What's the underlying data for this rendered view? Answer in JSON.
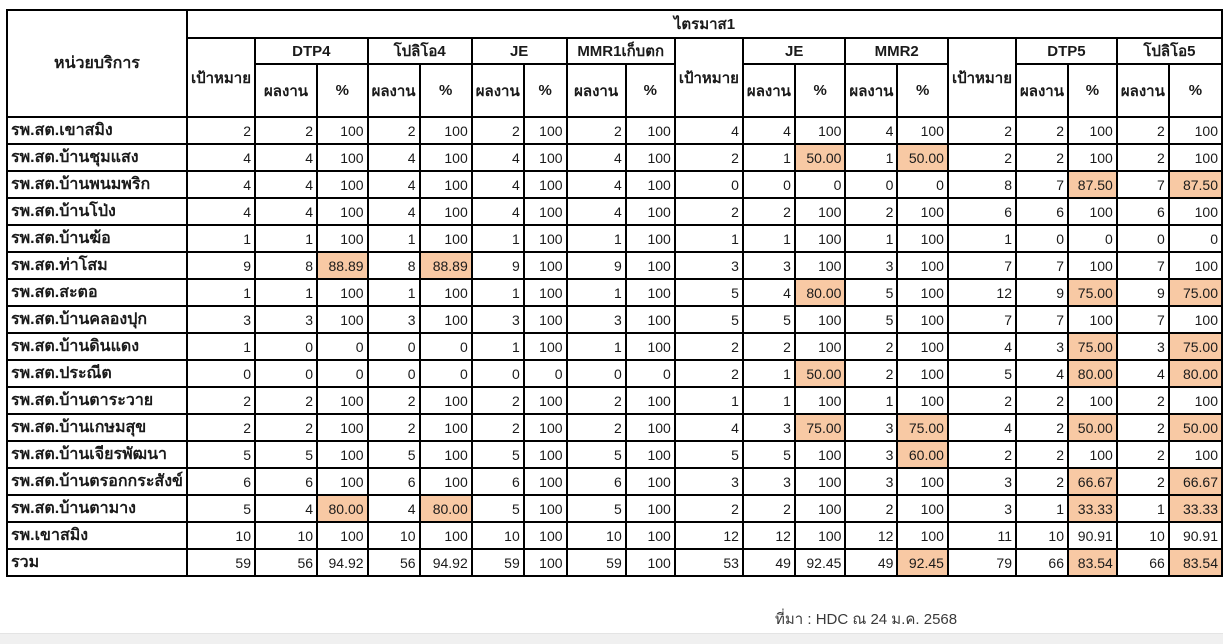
{
  "colors": {
    "highlight": "#F8C9A4",
    "border": "#000000",
    "bottom_bar": "#f0f0f0"
  },
  "table": {
    "quarter_header": "ไตรมาส1",
    "unit_col_header": "หน่วยบริการ",
    "target_label": "เป้าหมาย",
    "result_label": "ผลงาน",
    "percent_label": "%",
    "groups": [
      {
        "label": "DTP4"
      },
      {
        "label": "โปลิโอ4"
      },
      {
        "label": "JE"
      },
      {
        "label": "MMR1เก็บตก"
      },
      {
        "label": "JE"
      },
      {
        "label": "MMR2"
      },
      {
        "label": "DTP5"
      },
      {
        "label": "โปลิโอ5"
      }
    ],
    "rows": [
      {
        "unit": "รพ.สต.เขาสมิง",
        "values": [
          "2",
          "2",
          "100",
          "2",
          "100",
          "2",
          "100",
          "2",
          "100",
          "4",
          "4",
          "100",
          "4",
          "100",
          "2",
          "2",
          "100",
          "2",
          "100"
        ],
        "highlights": []
      },
      {
        "unit": "รพ.สต.บ้านชุมแสง",
        "values": [
          "4",
          "4",
          "100",
          "4",
          "100",
          "4",
          "100",
          "4",
          "100",
          "2",
          "1",
          "50.00",
          "1",
          "50.00",
          "2",
          "2",
          "100",
          "2",
          "100"
        ],
        "highlights": [
          11,
          13
        ]
      },
      {
        "unit": "รพ.สต.บ้านพนมพริก",
        "values": [
          "4",
          "4",
          "100",
          "4",
          "100",
          "4",
          "100",
          "4",
          "100",
          "0",
          "0",
          "0",
          "0",
          "0",
          "8",
          "7",
          "87.50",
          "7",
          "87.50"
        ],
        "highlights": [
          16,
          18
        ]
      },
      {
        "unit": "รพ.สต.บ้านโป่ง",
        "values": [
          "4",
          "4",
          "100",
          "4",
          "100",
          "4",
          "100",
          "4",
          "100",
          "2",
          "2",
          "100",
          "2",
          "100",
          "6",
          "6",
          "100",
          "6",
          "100"
        ],
        "highlights": []
      },
      {
        "unit": "รพ.สต.บ้านฆ้อ",
        "values": [
          "1",
          "1",
          "100",
          "1",
          "100",
          "1",
          "100",
          "1",
          "100",
          "1",
          "1",
          "100",
          "1",
          "100",
          "1",
          "0",
          "0",
          "0",
          "0"
        ],
        "highlights": []
      },
      {
        "unit": "รพ.สต.ท่าโสม",
        "values": [
          "9",
          "8",
          "88.89",
          "8",
          "88.89",
          "9",
          "100",
          "9",
          "100",
          "3",
          "3",
          "100",
          "3",
          "100",
          "7",
          "7",
          "100",
          "7",
          "100"
        ],
        "highlights": [
          2,
          4
        ]
      },
      {
        "unit": "รพ.สต.สะตอ",
        "values": [
          "1",
          "1",
          "100",
          "1",
          "100",
          "1",
          "100",
          "1",
          "100",
          "5",
          "4",
          "80.00",
          "5",
          "100",
          "12",
          "9",
          "75.00",
          "9",
          "75.00"
        ],
        "highlights": [
          11,
          16,
          18
        ]
      },
      {
        "unit": "รพ.สต.บ้านคลองปุก",
        "values": [
          "3",
          "3",
          "100",
          "3",
          "100",
          "3",
          "100",
          "3",
          "100",
          "5",
          "5",
          "100",
          "5",
          "100",
          "7",
          "7",
          "100",
          "7",
          "100"
        ],
        "highlights": []
      },
      {
        "unit": "รพ.สต.บ้านดินแดง",
        "values": [
          "1",
          "0",
          "0",
          "0",
          "0",
          "1",
          "100",
          "1",
          "100",
          "2",
          "2",
          "100",
          "2",
          "100",
          "4",
          "3",
          "75.00",
          "3",
          "75.00"
        ],
        "highlights": [
          16,
          18
        ]
      },
      {
        "unit": "รพ.สต.ประณีต",
        "values": [
          "0",
          "0",
          "0",
          "0",
          "0",
          "0",
          "0",
          "0",
          "0",
          "2",
          "1",
          "50.00",
          "2",
          "100",
          "5",
          "4",
          "80.00",
          "4",
          "80.00"
        ],
        "highlights": [
          11,
          16,
          18
        ]
      },
      {
        "unit": "รพ.สต.บ้านตาระวาย",
        "values": [
          "2",
          "2",
          "100",
          "2",
          "100",
          "2",
          "100",
          "2",
          "100",
          "1",
          "1",
          "100",
          "1",
          "100",
          "2",
          "2",
          "100",
          "2",
          "100"
        ],
        "highlights": []
      },
      {
        "unit": "รพ.สต.บ้านเกษมสุข",
        "values": [
          "2",
          "2",
          "100",
          "2",
          "100",
          "2",
          "100",
          "2",
          "100",
          "4",
          "3",
          "75.00",
          "3",
          "75.00",
          "4",
          "2",
          "50.00",
          "2",
          "50.00"
        ],
        "highlights": [
          11,
          13,
          16,
          18
        ]
      },
      {
        "unit": "รพ.สต.บ้านเจียรพัฒนา",
        "values": [
          "5",
          "5",
          "100",
          "5",
          "100",
          "5",
          "100",
          "5",
          "100",
          "5",
          "5",
          "100",
          "3",
          "60.00",
          "2",
          "2",
          "100",
          "2",
          "100"
        ],
        "highlights": [
          13
        ]
      },
      {
        "unit": "รพ.สต.บ้านตรอกกระสังข์",
        "values": [
          "6",
          "6",
          "100",
          "6",
          "100",
          "6",
          "100",
          "6",
          "100",
          "3",
          "3",
          "100",
          "3",
          "100",
          "3",
          "2",
          "66.67",
          "2",
          "66.67"
        ],
        "highlights": [
          16,
          18
        ]
      },
      {
        "unit": "รพ.สต.บ้านตามาง",
        "values": [
          "5",
          "4",
          "80.00",
          "4",
          "80.00",
          "5",
          "100",
          "5",
          "100",
          "2",
          "2",
          "100",
          "2",
          "100",
          "3",
          "1",
          "33.33",
          "1",
          "33.33"
        ],
        "highlights": [
          2,
          4,
          16,
          18
        ]
      },
      {
        "unit": "รพ.เขาสมิง",
        "values": [
          "10",
          "10",
          "100",
          "10",
          "100",
          "10",
          "100",
          "10",
          "100",
          "12",
          "12",
          "100",
          "12",
          "100",
          "11",
          "10",
          "90.91",
          "10",
          "90.91"
        ],
        "highlights": []
      },
      {
        "unit": "รวม",
        "values": [
          "59",
          "56",
          "94.92",
          "56",
          "94.92",
          "59",
          "100",
          "59",
          "100",
          "53",
          "49",
          "92.45",
          "49",
          "92.45",
          "79",
          "66",
          "83.54",
          "66",
          "83.54"
        ],
        "highlights": [
          13,
          16,
          18
        ]
      }
    ]
  },
  "footer": {
    "source_note": "ที่มา : HDC ณ 24 ม.ค. 2568"
  }
}
